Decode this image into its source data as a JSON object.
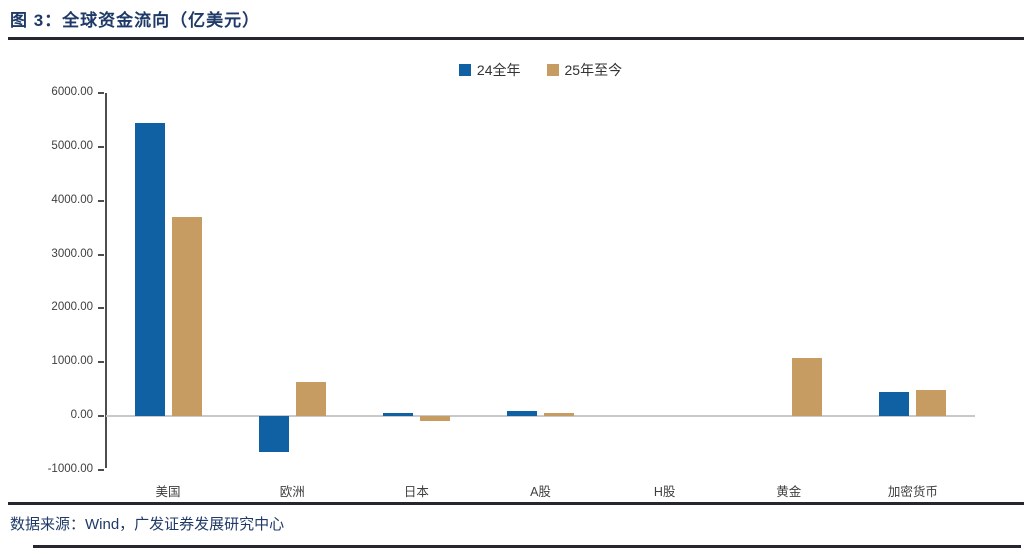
{
  "header": {
    "title": "图 3：全球资金流向（亿美元）"
  },
  "legend": {
    "items": [
      {
        "label": "24全年",
        "color": "#1061a3"
      },
      {
        "label": "25年至今",
        "color": "#c69c62"
      }
    ]
  },
  "footer": {
    "source": "数据来源：Wind，广发证券发展研究中心"
  },
  "colors": {
    "title_navy": "#1f3a68",
    "series_blue": "#1061a3",
    "series_tan": "#c69c62",
    "axis": "#4d4d4d",
    "zero_line": "#c9c9c9",
    "rule": "#26262e"
  },
  "chart_data": {
    "type": "bar",
    "title": "图 3：全球资金流向（亿美元）",
    "xlabel": "",
    "ylabel": "",
    "categories": [
      "美国",
      "欧洲",
      "日本",
      "A股",
      "H股",
      "黄金",
      "加密货币"
    ],
    "series": [
      {
        "name": "24全年",
        "color": "#1061a3",
        "values": [
          5450,
          -670,
          50,
          100,
          0,
          0,
          450
        ]
      },
      {
        "name": "25年至今",
        "color": "#c69c62",
        "values": [
          3700,
          640,
          -100,
          60,
          0,
          1080,
          485
        ]
      }
    ],
    "ylim": [
      -1000,
      6000
    ],
    "ytick_interval": 1000,
    "ytick_labels": [
      "6000.00",
      "5000.00",
      "4000.00",
      "3000.00",
      "2000.00",
      "1000.00",
      "0.00",
      "-1000.00"
    ],
    "ytick_values": [
      6000,
      5000,
      4000,
      3000,
      2000,
      1000,
      0,
      -1000
    ],
    "grid": false,
    "legend_position": "top-center"
  }
}
